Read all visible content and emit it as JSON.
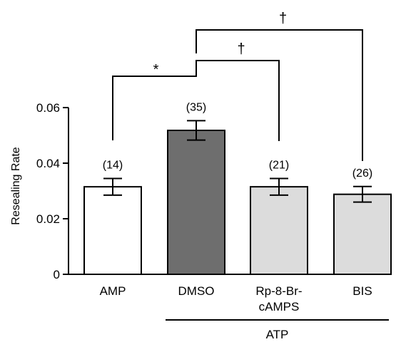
{
  "chart_data": {
    "type": "bar",
    "categories": [
      "AMP",
      "DMSO",
      "Rp-8-Br-cAMPS",
      "BIS"
    ],
    "category_lines": [
      [
        "AMP"
      ],
      [
        "DMSO"
      ],
      [
        "Rp-8-Br-",
        "cAMPS"
      ],
      [
        "BIS"
      ]
    ],
    "values": [
      0.0315,
      0.0518,
      0.0315,
      0.0288
    ],
    "errors": [
      0.003,
      0.0035,
      0.003,
      0.0028
    ],
    "n_labels": [
      "(14)",
      "(35)",
      "(21)",
      "(26)"
    ],
    "bar_colors": [
      "#ffffff",
      "#6e6e6e",
      "#dcdcdc",
      "#dcdcdc"
    ],
    "ylabel": "Resealing Rate",
    "ylim": [
      0,
      0.06
    ],
    "yticks": [
      0,
      0.02,
      0.04,
      0.06
    ],
    "ytick_labels": [
      "0",
      "0.02",
      "0.04",
      "0.06"
    ],
    "group_label": "ATP",
    "group_categories": [
      "DMSO",
      "Rp-8-Br-cAMPS",
      "BIS"
    ],
    "comparisons": [
      {
        "from": "AMP",
        "to": "DMSO",
        "symbol": "*"
      },
      {
        "from": "DMSO",
        "to": "Rp-8-Br-cAMPS",
        "symbol": "†"
      },
      {
        "from": "DMSO",
        "to": "BIS",
        "symbol": "†"
      }
    ],
    "grid": false,
    "legend": "none"
  }
}
